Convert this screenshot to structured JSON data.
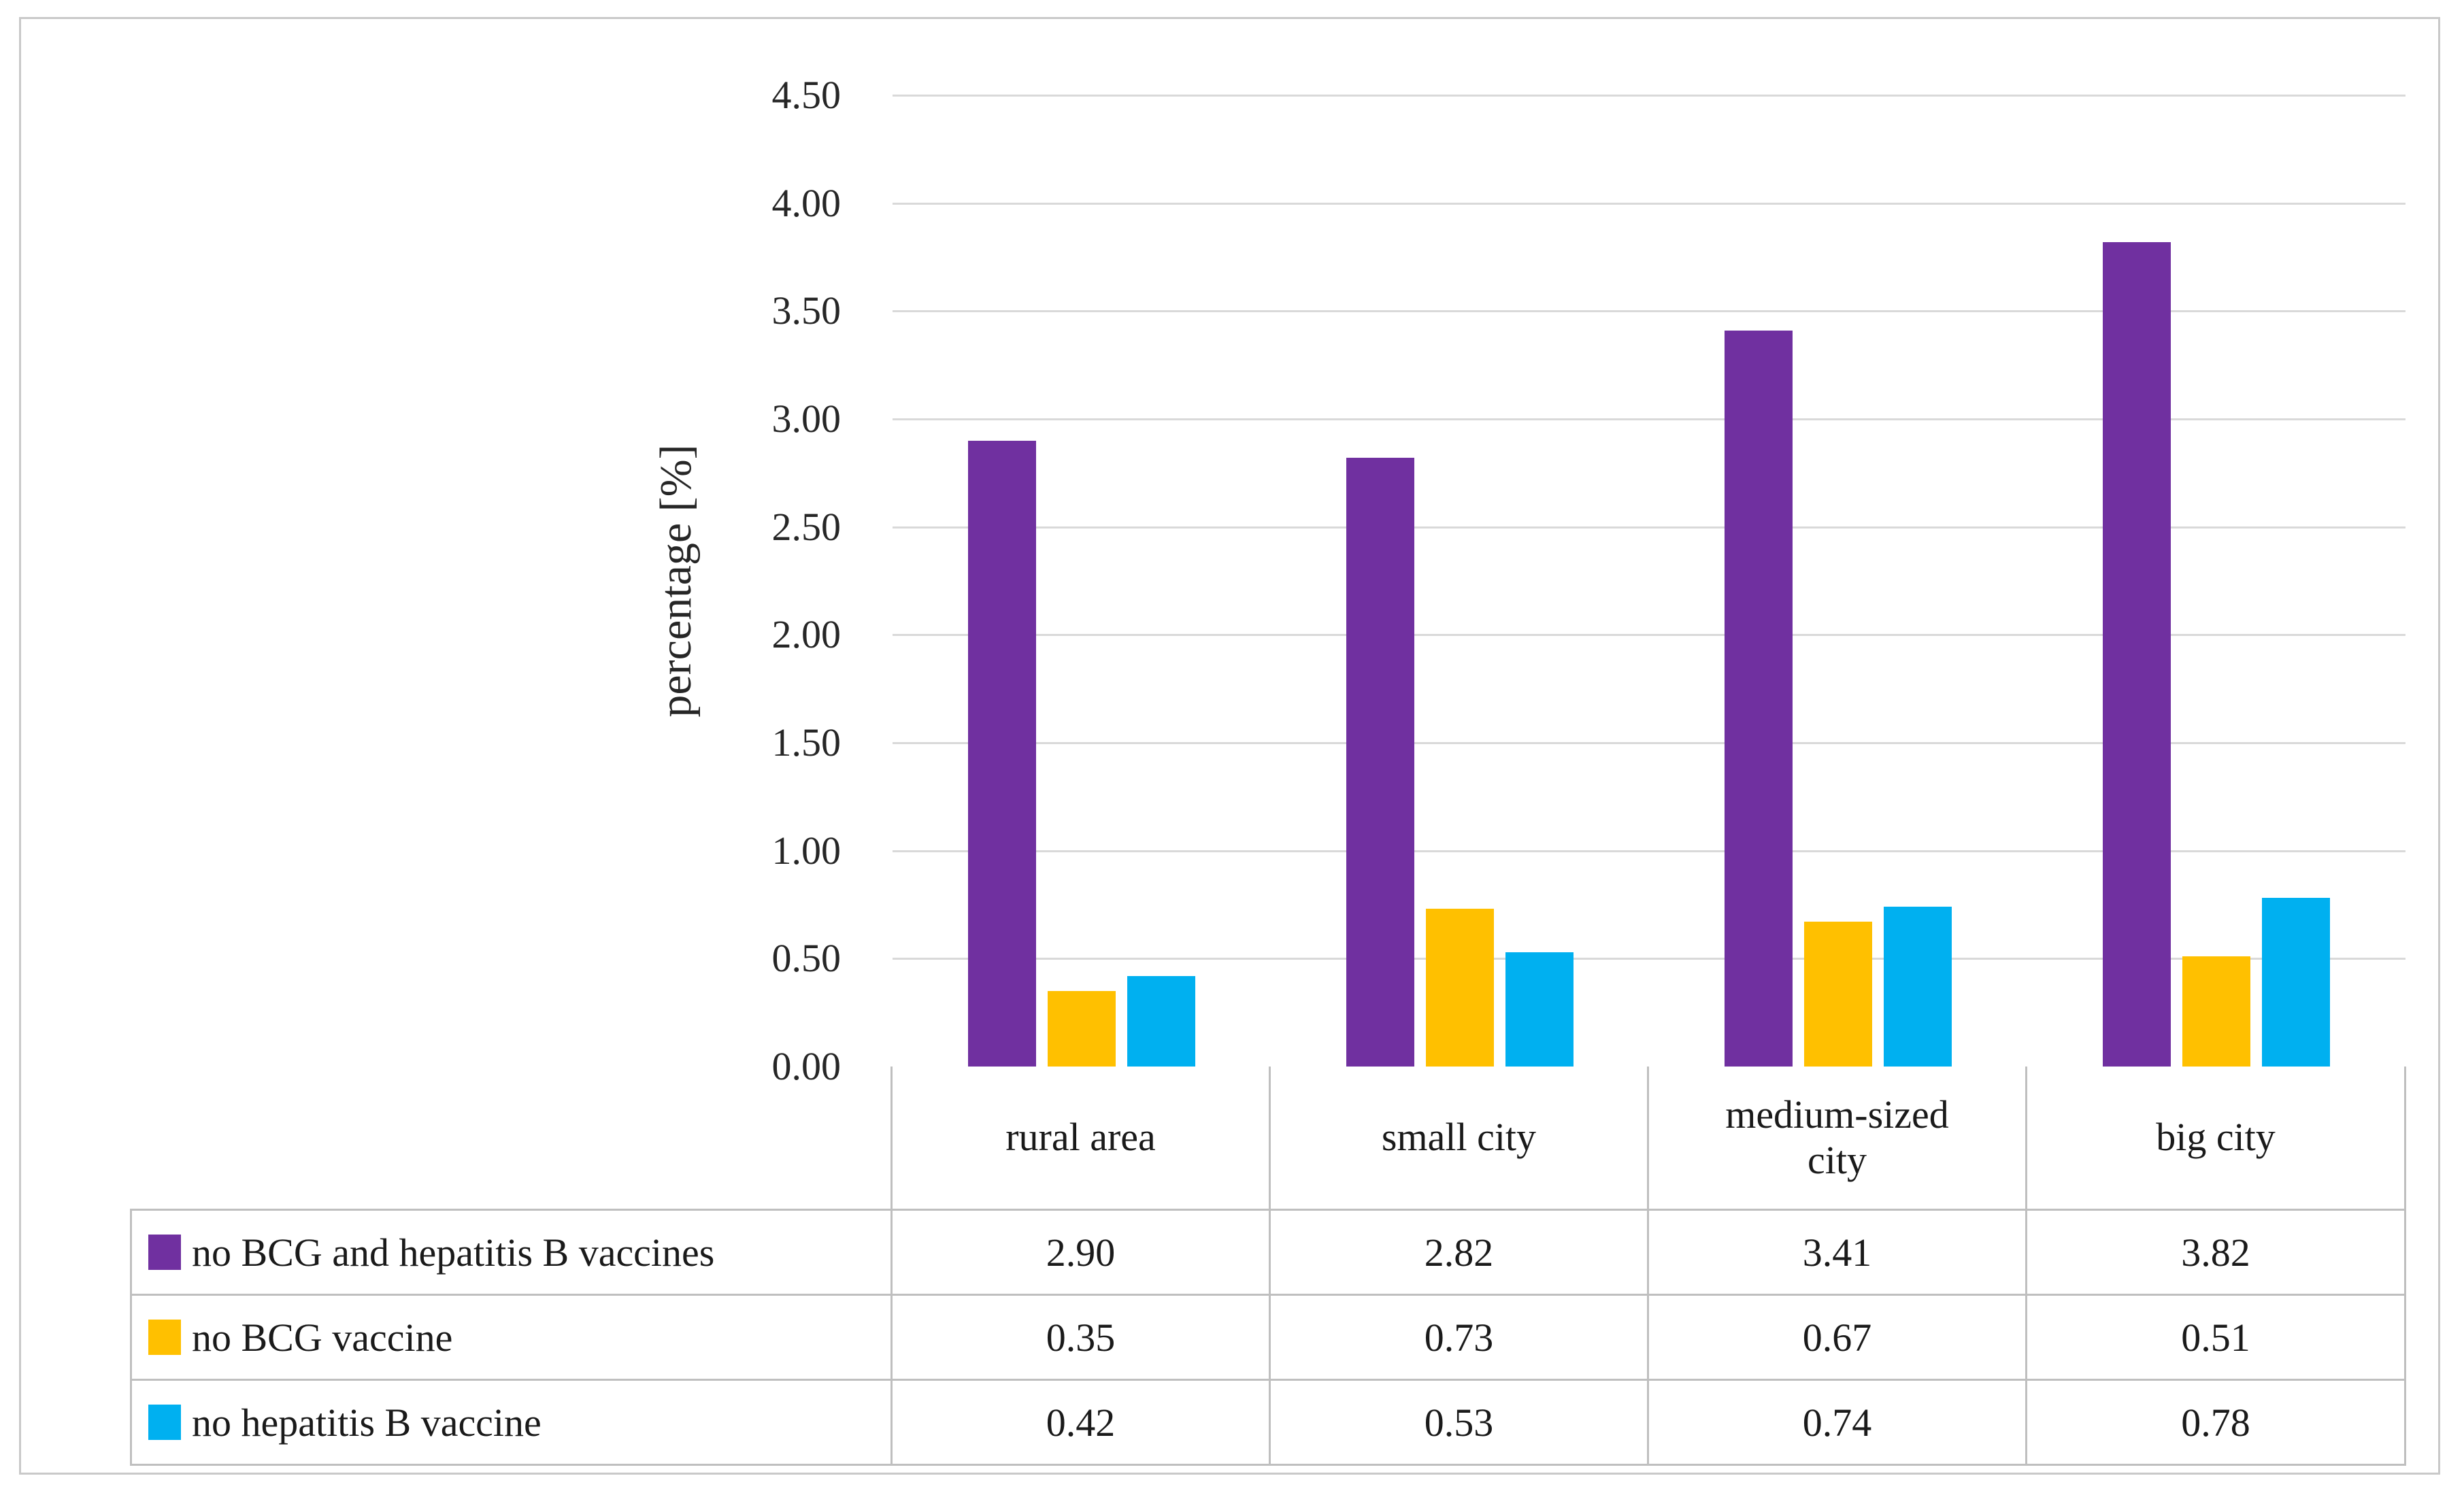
{
  "chart_data": {
    "type": "bar",
    "title": "",
    "xlabel": "",
    "ylabel": "percentage [%]",
    "ylim": [
      0,
      4.5
    ],
    "ytick_step": 0.5,
    "ytick_labels": [
      "0.00",
      "0.50",
      "1.00",
      "1.50",
      "2.00",
      "2.50",
      "3.00",
      "3.50",
      "4.00",
      "4.50"
    ],
    "grid": true,
    "legend_position": "table-below-left",
    "categories": [
      "rural area",
      "small city",
      "medium-sized city",
      "big city"
    ],
    "series": [
      {
        "name": "no BCG and hepatitis B vaccines",
        "color": "#7030A0",
        "values": [
          2.9,
          2.82,
          3.41,
          3.82
        ]
      },
      {
        "name": "no BCG vaccine",
        "color": "#FFC000",
        "values": [
          0.35,
          0.73,
          0.67,
          0.51
        ]
      },
      {
        "name": "no hepatitis B vaccine",
        "color": "#00B0F0",
        "values": [
          0.42,
          0.53,
          0.74,
          0.78
        ]
      }
    ],
    "value_decimals": 2
  },
  "colors": {
    "gridline": "#d9d9d9",
    "axis_line": "#bfbfbf",
    "table_border": "#bfbfbf",
    "frame_border": "#c9c9c9",
    "text": "#1a1a1a",
    "background": "#ffffff"
  }
}
